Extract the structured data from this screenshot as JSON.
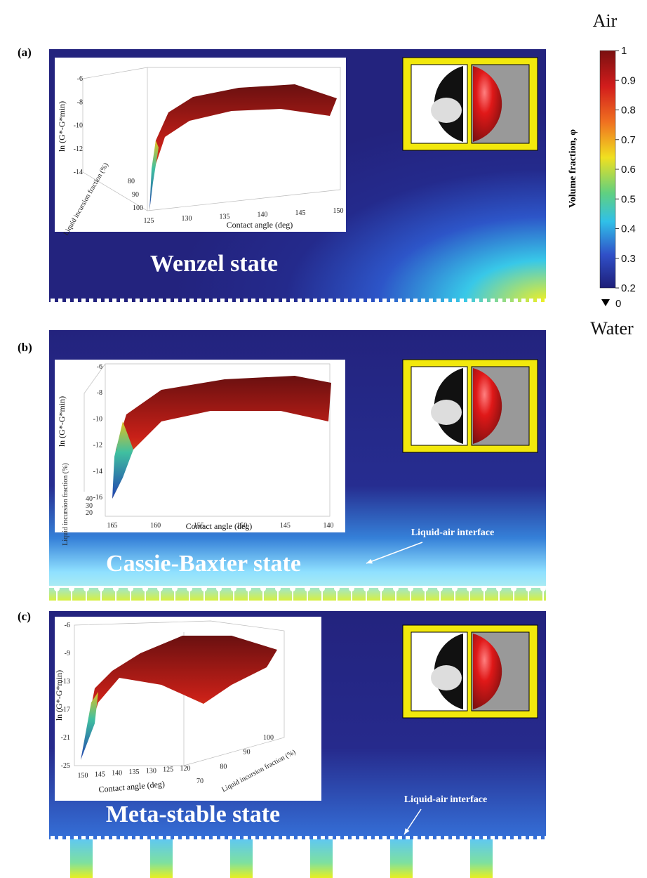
{
  "colorbar": {
    "top_label": "Air",
    "bottom_label": "Water",
    "title": "Volume fraction, φ",
    "ticks": [
      1,
      0.9,
      0.8,
      0.7,
      0.6,
      0.5,
      0.4,
      0.3,
      0.2
    ],
    "min_label": 0
  },
  "panels": [
    {
      "label": "(a)",
      "state": "Wenzel state",
      "inset": {
        "y_label": "ln (G*-G*min)",
        "x_label": "Contact angle (deg)",
        "z_label": "Liquid incursion fraction (%)",
        "y_ticks": [
          -6,
          -8,
          -10,
          -12,
          -14
        ],
        "x_ticks": [
          125,
          130,
          135,
          140,
          145,
          150
        ],
        "z_ticks": [
          100,
          90,
          80
        ]
      }
    },
    {
      "label": "(b)",
      "state": "Cassie-Baxter state",
      "annotation": "Liquid-air interface",
      "inset": {
        "y_label": "ln (G*-G*min)",
        "x_label": "Contact angle (deg)",
        "z_label": "Liquid incursion fraction (%)",
        "y_ticks": [
          -6,
          -8,
          -10,
          -12,
          -14,
          -16
        ],
        "x_ticks": [
          165,
          160,
          155,
          150,
          145,
          140
        ],
        "z_ticks": [
          40,
          30,
          20
        ]
      }
    },
    {
      "label": "(c)",
      "state": "Meta-stable state",
      "annotation": "Liquid-air interface",
      "inset": {
        "y_label": "ln (G*-G*min)",
        "x_label": "Contact angle (deg)",
        "z_label": "Liquid incursion fraction (%)",
        "y_ticks": [
          -6,
          -9,
          -13,
          -17,
          -21,
          -25
        ],
        "x_ticks": [
          150,
          145,
          140,
          135,
          130,
          125,
          120
        ],
        "z_ticks": [
          70,
          80,
          90,
          100
        ]
      }
    }
  ]
}
